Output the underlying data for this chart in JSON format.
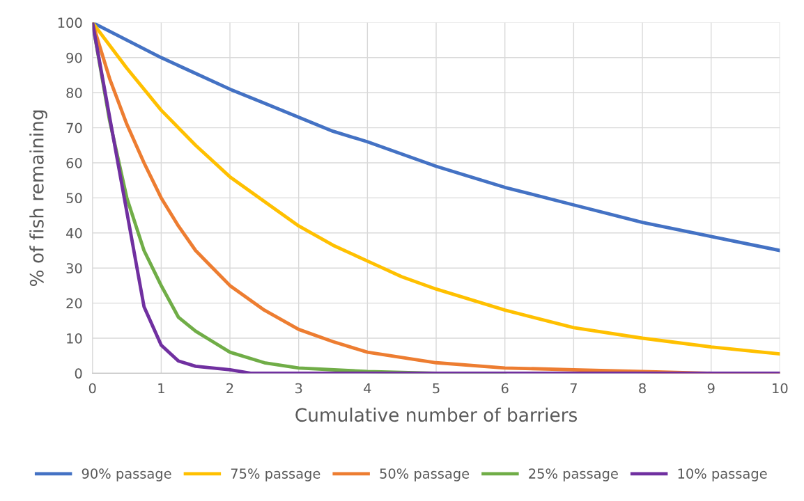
{
  "chart_data": {
    "type": "line",
    "xlabel": "Cumulative number of barriers",
    "ylabel": "% of fish remaining",
    "series": [
      {
        "name": "90% passage",
        "color": "#4472c4",
        "x": [
          0,
          0.5,
          1,
          1.5,
          2,
          2.5,
          3,
          3.5,
          4,
          5,
          6,
          7,
          8,
          9,
          10
        ],
        "values": [
          100,
          95,
          90,
          85.5,
          81,
          77,
          73,
          69,
          66,
          59,
          53,
          48,
          43,
          39,
          35
        ]
      },
      {
        "name": "75% passage",
        "color": "#ffc000",
        "x": [
          0,
          0.5,
          1,
          1.5,
          2,
          2.5,
          3,
          3.5,
          4,
          4.5,
          5,
          6,
          7,
          8,
          9,
          10
        ],
        "values": [
          100,
          87,
          75,
          65,
          56,
          49,
          42,
          36.5,
          32,
          27.5,
          24,
          18,
          13,
          10,
          7.5,
          5.5
        ]
      },
      {
        "name": "50% passage",
        "color": "#ed7d31",
        "x": [
          0,
          0.25,
          0.5,
          0.75,
          1,
          1.25,
          1.5,
          1.75,
          2,
          2.5,
          3,
          3.5,
          4,
          5,
          6,
          7,
          8,
          9,
          10
        ],
        "values": [
          100,
          84,
          71,
          60,
          50,
          42,
          35,
          30,
          25,
          18,
          12.5,
          9,
          6,
          3,
          1.5,
          1,
          0.5,
          0,
          0
        ]
      },
      {
        "name": "25% passage",
        "color": "#70ad47",
        "x": [
          0,
          0.25,
          0.5,
          0.75,
          1,
          1.25,
          1.5,
          1.75,
          2,
          2.5,
          3,
          4,
          5,
          6
        ],
        "values": [
          100,
          72,
          50,
          35,
          25,
          16,
          12,
          9,
          6,
          3,
          1.5,
          0.5,
          0,
          0
        ]
      },
      {
        "name": "10% passage",
        "color": "#7030a0",
        "x": [
          0,
          0.25,
          0.5,
          0.75,
          1,
          1.25,
          1.5,
          1.75,
          2,
          2.3,
          3,
          4,
          5,
          6,
          7,
          8,
          9,
          10
        ],
        "values": [
          100,
          73,
          46,
          19,
          8,
          3.5,
          2,
          1.5,
          1,
          0,
          0,
          0,
          0,
          0,
          0,
          0,
          0,
          0
        ]
      }
    ],
    "xlim": [
      0,
      10
    ],
    "xticks": [
      0,
      1,
      2,
      3,
      4,
      5,
      6,
      7,
      8,
      9,
      10
    ],
    "ylim": [
      0,
      100
    ],
    "yticks": [
      0,
      10,
      20,
      30,
      40,
      50,
      60,
      70,
      80,
      90,
      100
    ],
    "grid": true,
    "legend": "bottom",
    "marker": "none",
    "line_style": "solid"
  }
}
